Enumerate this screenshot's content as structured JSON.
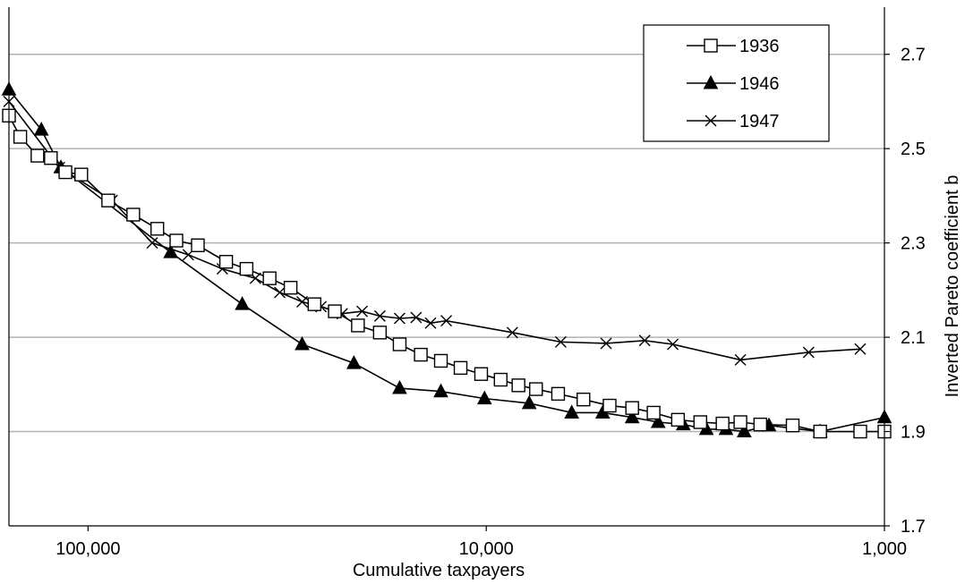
{
  "chart_data": {
    "type": "line",
    "x_scale": "log",
    "x_reversed": true,
    "xlabel": "Cumulative taxpayers",
    "ylabel": "Inverted Pareto coefficient b",
    "xlim": [
      158000,
      1000
    ],
    "ylim": [
      1.7,
      2.8
    ],
    "x_ticks": [
      100000,
      10000,
      1000
    ],
    "x_tick_labels": [
      "100,000",
      "10,000",
      "1,000"
    ],
    "y_ticks": [
      1.7,
      1.9,
      2.1,
      2.3,
      2.5,
      2.7
    ],
    "y_tick_labels": [
      "1.7",
      "1.9",
      "2.1",
      "2.3",
      "2.5",
      "2.7"
    ],
    "y_axis_side": "right",
    "grid": "horizontal",
    "legend_position": "top-right",
    "series": [
      {
        "name": "1936",
        "marker": "open-square",
        "color": "#000000",
        "points": [
          [
            158000,
            2.57
          ],
          [
            148000,
            2.525
          ],
          [
            134000,
            2.485
          ],
          [
            124000,
            2.48
          ],
          [
            114000,
            2.45
          ],
          [
            104000,
            2.445
          ],
          [
            89000,
            2.39
          ],
          [
            77000,
            2.36
          ],
          [
            67000,
            2.33
          ],
          [
            60000,
            2.305
          ],
          [
            53000,
            2.295
          ],
          [
            45000,
            2.26
          ],
          [
            40000,
            2.245
          ],
          [
            35000,
            2.225
          ],
          [
            31000,
            2.205
          ],
          [
            27000,
            2.17
          ],
          [
            24000,
            2.155
          ],
          [
            21000,
            2.125
          ],
          [
            18500,
            2.11
          ],
          [
            16500,
            2.085
          ],
          [
            14600,
            2.063
          ],
          [
            13000,
            2.05
          ],
          [
            11600,
            2.035
          ],
          [
            10300,
            2.022
          ],
          [
            9200,
            2.01
          ],
          [
            8300,
            1.998
          ],
          [
            7500,
            1.99
          ],
          [
            6600,
            1.98
          ],
          [
            5700,
            1.968
          ],
          [
            4900,
            1.955
          ],
          [
            4300,
            1.95
          ],
          [
            3800,
            1.94
          ],
          [
            3300,
            1.925
          ],
          [
            2900,
            1.92
          ],
          [
            2550,
            1.917
          ],
          [
            2300,
            1.92
          ],
          [
            2050,
            1.915
          ],
          [
            1700,
            1.913
          ],
          [
            1450,
            1.9
          ],
          [
            1150,
            1.9
          ],
          [
            1000,
            1.9
          ]
        ]
      },
      {
        "name": "1946",
        "marker": "filled-triangle",
        "color": "#000000",
        "points": [
          [
            158000,
            2.625
          ],
          [
            131000,
            2.54
          ],
          [
            117000,
            2.46
          ],
          [
            62000,
            2.28
          ],
          [
            41000,
            2.17
          ],
          [
            29000,
            2.085
          ],
          [
            21500,
            2.045
          ],
          [
            16500,
            1.992
          ],
          [
            13000,
            1.985
          ],
          [
            10100,
            1.97
          ],
          [
            7800,
            1.96
          ],
          [
            6100,
            1.94
          ],
          [
            5100,
            1.94
          ],
          [
            4300,
            1.93
          ],
          [
            3700,
            1.92
          ],
          [
            3200,
            1.915
          ],
          [
            2800,
            1.905
          ],
          [
            2500,
            1.905
          ],
          [
            2250,
            1.9
          ],
          [
            1950,
            1.913
          ],
          [
            1450,
            1.9
          ],
          [
            1000,
            1.93
          ]
        ]
      },
      {
        "name": "1947",
        "marker": "x",
        "color": "#000000",
        "points": [
          [
            158000,
            2.6
          ],
          [
            118000,
            2.46
          ],
          [
            87000,
            2.39
          ],
          [
            69000,
            2.3
          ],
          [
            56000,
            2.275
          ],
          [
            46000,
            2.245
          ],
          [
            38000,
            2.225
          ],
          [
            33000,
            2.195
          ],
          [
            29000,
            2.175
          ],
          [
            26000,
            2.165
          ],
          [
            23000,
            2.15
          ],
          [
            20500,
            2.155
          ],
          [
            18500,
            2.145
          ],
          [
            16500,
            2.14
          ],
          [
            15000,
            2.142
          ],
          [
            13800,
            2.13
          ],
          [
            12600,
            2.135
          ],
          [
            8600,
            2.11
          ],
          [
            6500,
            2.09
          ],
          [
            5000,
            2.087
          ],
          [
            4000,
            2.093
          ],
          [
            3400,
            2.085
          ],
          [
            2300,
            2.052
          ],
          [
            1550,
            2.068
          ],
          [
            1150,
            2.075
          ]
        ]
      }
    ]
  }
}
